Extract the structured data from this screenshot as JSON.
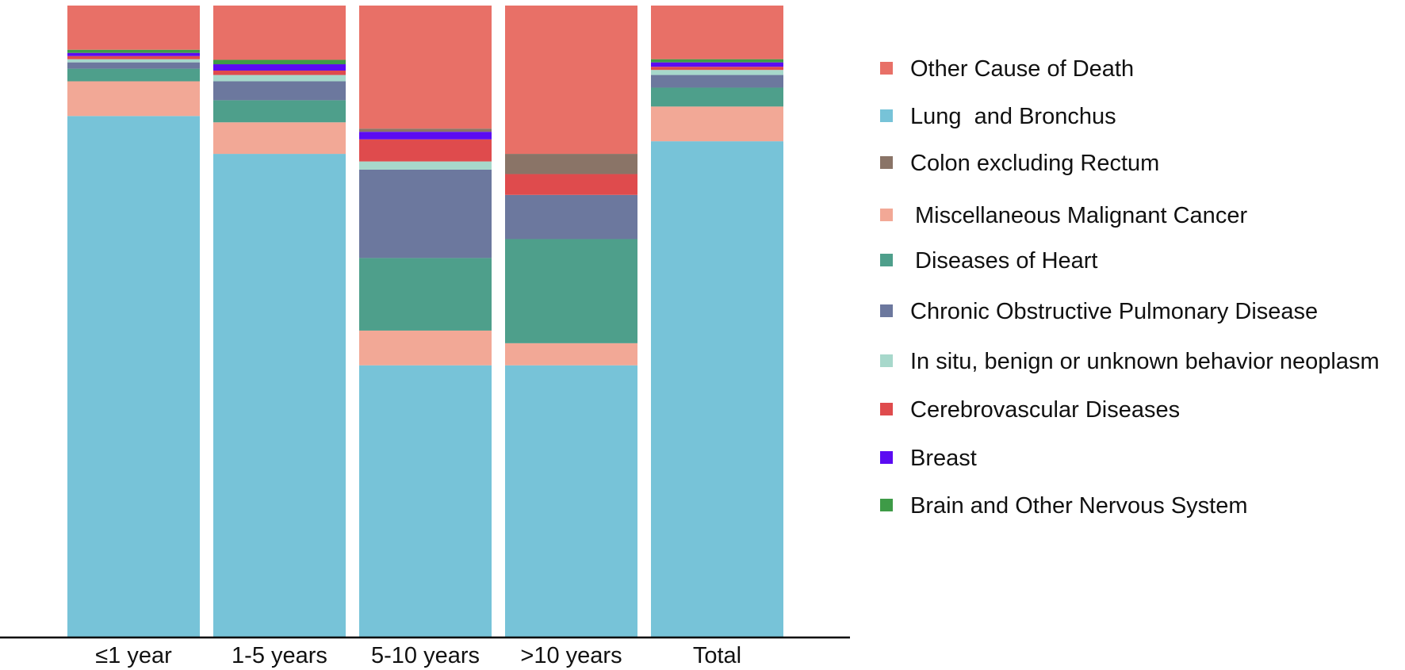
{
  "chart_data": {
    "type": "bar",
    "stacked": true,
    "normalized": true,
    "title": "",
    "xlabel": "",
    "ylabel": "",
    "ylim": [
      0,
      100
    ],
    "grid": false,
    "legend_position": "right",
    "categories": [
      "≤1 year",
      "1-5 years",
      "5-10 years",
      ">10 years",
      "Total"
    ],
    "series": [
      {
        "name": "Lung  and Bronchus",
        "color": "#77C3D8",
        "values": [
          82.5,
          76.5,
          43.0,
          43.0,
          78.5
        ]
      },
      {
        "name": "Miscellaneous Malignant Cancer",
        "color": "#F2A896",
        "values": [
          5.5,
          5.0,
          5.5,
          3.5,
          5.5
        ]
      },
      {
        "name": "Diseases of Heart",
        "color": "#4E9F8B",
        "values": [
          2.0,
          3.5,
          11.5,
          16.5,
          3.0
        ]
      },
      {
        "name": "Chronic Obstructive Pulmonary Disease",
        "color": "#6C789E",
        "values": [
          1.0,
          3.0,
          14.0,
          7.0,
          2.0
        ]
      },
      {
        "name": "In situ, benign or unknown behavior neoplasm",
        "color": "#A7D8CB",
        "values": [
          0.5,
          1.0,
          1.3,
          0.0,
          0.8
        ]
      },
      {
        "name": "Cerebrovascular Diseases",
        "color": "#DF4B4D",
        "values": [
          0.5,
          0.7,
          3.5,
          3.3,
          0.5
        ]
      },
      {
        "name": "Breast",
        "color": "#5B0BF2",
        "values": [
          0.5,
          1.0,
          1.2,
          0.0,
          0.7
        ]
      },
      {
        "name": "Colon excluding Rectum",
        "color": "#8A7467",
        "values": [
          0.0,
          0.0,
          0.5,
          3.2,
          0.0
        ]
      },
      {
        "name": "Brain and Other Nervous System",
        "color": "#3E9B47",
        "values": [
          0.5,
          0.7,
          0.0,
          0.0,
          0.5
        ]
      },
      {
        "name": "Other Cause of Death",
        "color": "#E87067",
        "values": [
          7.0,
          8.6,
          19.5,
          23.5,
          8.5
        ]
      }
    ],
    "legend_order": [
      "Other Cause of Death",
      "Lung  and Bronchus",
      "Colon excluding Rectum",
      "Miscellaneous Malignant Cancer",
      "Diseases of Heart",
      "Chronic Obstructive Pulmonary Disease",
      "In situ, benign or unknown behavior neoplasm",
      "Cerebrovascular Diseases",
      "Breast",
      "Brain and Other Nervous System"
    ],
    "axis_color": "#000000"
  }
}
